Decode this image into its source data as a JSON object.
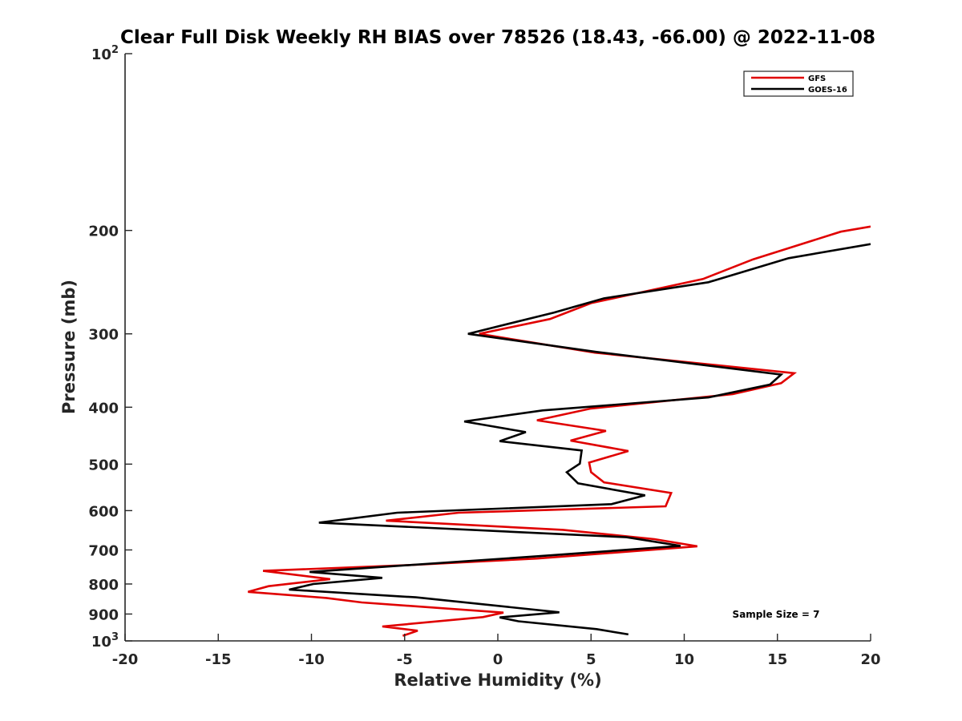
{
  "chart_data": {
    "type": "line",
    "title": "Clear Full Disk Weekly RH BIAS over 78526 (18.43, -66.00) @ 2022-11-08",
    "xlabel": "Relative Humidity (%)",
    "ylabel": "Pressure (mb)",
    "xlim": [
      -20,
      20
    ],
    "ylim": [
      100,
      1000
    ],
    "yscale": "log",
    "y_reversed": true,
    "x_ticks": [
      {
        "value": -20,
        "label": "-20"
      },
      {
        "value": -15,
        "label": "-15"
      },
      {
        "value": -10,
        "label": "-10"
      },
      {
        "value": -5,
        "label": "-5"
      },
      {
        "value": 0,
        "label": "0"
      },
      {
        "value": 5,
        "label": "5"
      },
      {
        "value": 10,
        "label": "10"
      },
      {
        "value": 15,
        "label": "15"
      },
      {
        "value": 20,
        "label": "20"
      }
    ],
    "y_ticks": [
      {
        "value": 100,
        "base": "10",
        "exp": "2"
      },
      {
        "value": 200,
        "base": "200",
        "exp": ""
      },
      {
        "value": 300,
        "base": "300",
        "exp": ""
      },
      {
        "value": 400,
        "base": "400",
        "exp": ""
      },
      {
        "value": 500,
        "base": "500",
        "exp": ""
      },
      {
        "value": 600,
        "base": "600",
        "exp": ""
      },
      {
        "value": 700,
        "base": "700",
        "exp": ""
      },
      {
        "value": 800,
        "base": "800",
        "exp": ""
      },
      {
        "value": 900,
        "base": "900",
        "exp": ""
      },
      {
        "value": 1000,
        "base": "10",
        "exp": "3"
      }
    ],
    "grid": false,
    "legend_position": "top-right",
    "series": [
      {
        "name": "GFS",
        "color": "#e00000",
        "points": [
          [
            20.0,
            197
          ],
          [
            18.4,
            201
          ],
          [
            13.7,
            224
          ],
          [
            11.0,
            242
          ],
          [
            5.0,
            266
          ],
          [
            2.8,
            283
          ],
          [
            -1.0,
            300
          ],
          [
            5.2,
            323
          ],
          [
            15.9,
            350
          ],
          [
            15.2,
            364
          ],
          [
            12.6,
            380
          ],
          [
            5.0,
            402
          ],
          [
            2.1,
            421
          ],
          [
            5.8,
            439
          ],
          [
            3.9,
            456
          ],
          [
            7.0,
            475
          ],
          [
            4.9,
            497
          ],
          [
            5.0,
            516
          ],
          [
            5.7,
            537
          ],
          [
            9.3,
            560
          ],
          [
            9.0,
            590
          ],
          [
            -2.1,
            605
          ],
          [
            -6.0,
            624
          ],
          [
            3.5,
            647
          ],
          [
            8.4,
            671
          ],
          [
            10.7,
            690
          ],
          [
            2.1,
            724
          ],
          [
            -4.4,
            742
          ],
          [
            -12.6,
            760
          ],
          [
            -9.0,
            785
          ],
          [
            -12.3,
            807
          ],
          [
            -13.4,
            825
          ],
          [
            -9.2,
            845
          ],
          [
            -7.3,
            860
          ],
          [
            0.3,
            895
          ],
          [
            -0.8,
            911
          ],
          [
            -6.2,
            945
          ],
          [
            -4.3,
            961
          ],
          [
            -5.1,
            980
          ]
        ]
      },
      {
        "name": "GOES-16",
        "color": "#000000",
        "points": [
          [
            20.0,
            211
          ],
          [
            15.6,
            223
          ],
          [
            11.3,
            245
          ],
          [
            5.7,
            261
          ],
          [
            3.0,
            276
          ],
          [
            -1.6,
            300
          ],
          [
            5.3,
            322
          ],
          [
            15.2,
            352
          ],
          [
            14.6,
            366
          ],
          [
            11.3,
            385
          ],
          [
            2.4,
            405
          ],
          [
            -1.8,
            423
          ],
          [
            1.5,
            441
          ],
          [
            0.1,
            457
          ],
          [
            4.5,
            474
          ],
          [
            4.4,
            499
          ],
          [
            3.7,
            516
          ],
          [
            4.3,
            539
          ],
          [
            7.9,
            565
          ],
          [
            6.1,
            585
          ],
          [
            -5.4,
            605
          ],
          [
            -9.6,
            629
          ],
          [
            6.9,
            666
          ],
          [
            9.8,
            689
          ],
          [
            2.3,
            717
          ],
          [
            -10.1,
            763
          ],
          [
            -6.2,
            781
          ],
          [
            -9.9,
            800
          ],
          [
            -11.2,
            818
          ],
          [
            -4.4,
            843
          ],
          [
            3.3,
            894
          ],
          [
            0.1,
            912
          ],
          [
            1.1,
            926
          ],
          [
            5.3,
            955
          ],
          [
            7.0,
            975
          ]
        ]
      }
    ],
    "annotations": [
      {
        "text": "Sample Size = 7"
      }
    ]
  }
}
